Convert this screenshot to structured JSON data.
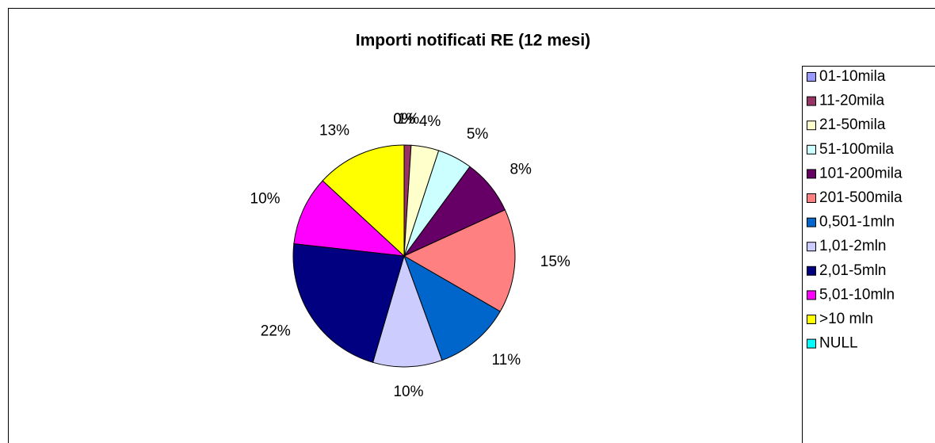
{
  "chart_data": {
    "type": "pie",
    "title": "Importi notificati RE (12 mesi)",
    "categories": [
      "01-10mila",
      "11-20mila",
      "21-50mila",
      "51-100mila",
      "101-200mila",
      "201-500mila",
      "0,501-1mln",
      "1,01-2mln",
      "2,01-5mln",
      "5,01-10mln",
      ">10 mln",
      "NULL"
    ],
    "values": [
      0,
      1,
      4,
      5,
      8,
      15,
      11,
      10,
      22,
      10,
      13,
      0
    ],
    "value_labels": [
      "0%",
      "1%",
      "4%",
      "5%",
      "8%",
      "15%",
      "11%",
      "10%",
      "22%",
      "10%",
      "13%",
      "0%"
    ],
    "colors": [
      "#9999ff",
      "#993366",
      "#ffffcc",
      "#ccffff",
      "#660066",
      "#ff8080",
      "#0066cc",
      "#ccccff",
      "#000080",
      "#ff00ff",
      "#ffff00",
      "#00ffff"
    ],
    "legend": "right"
  }
}
